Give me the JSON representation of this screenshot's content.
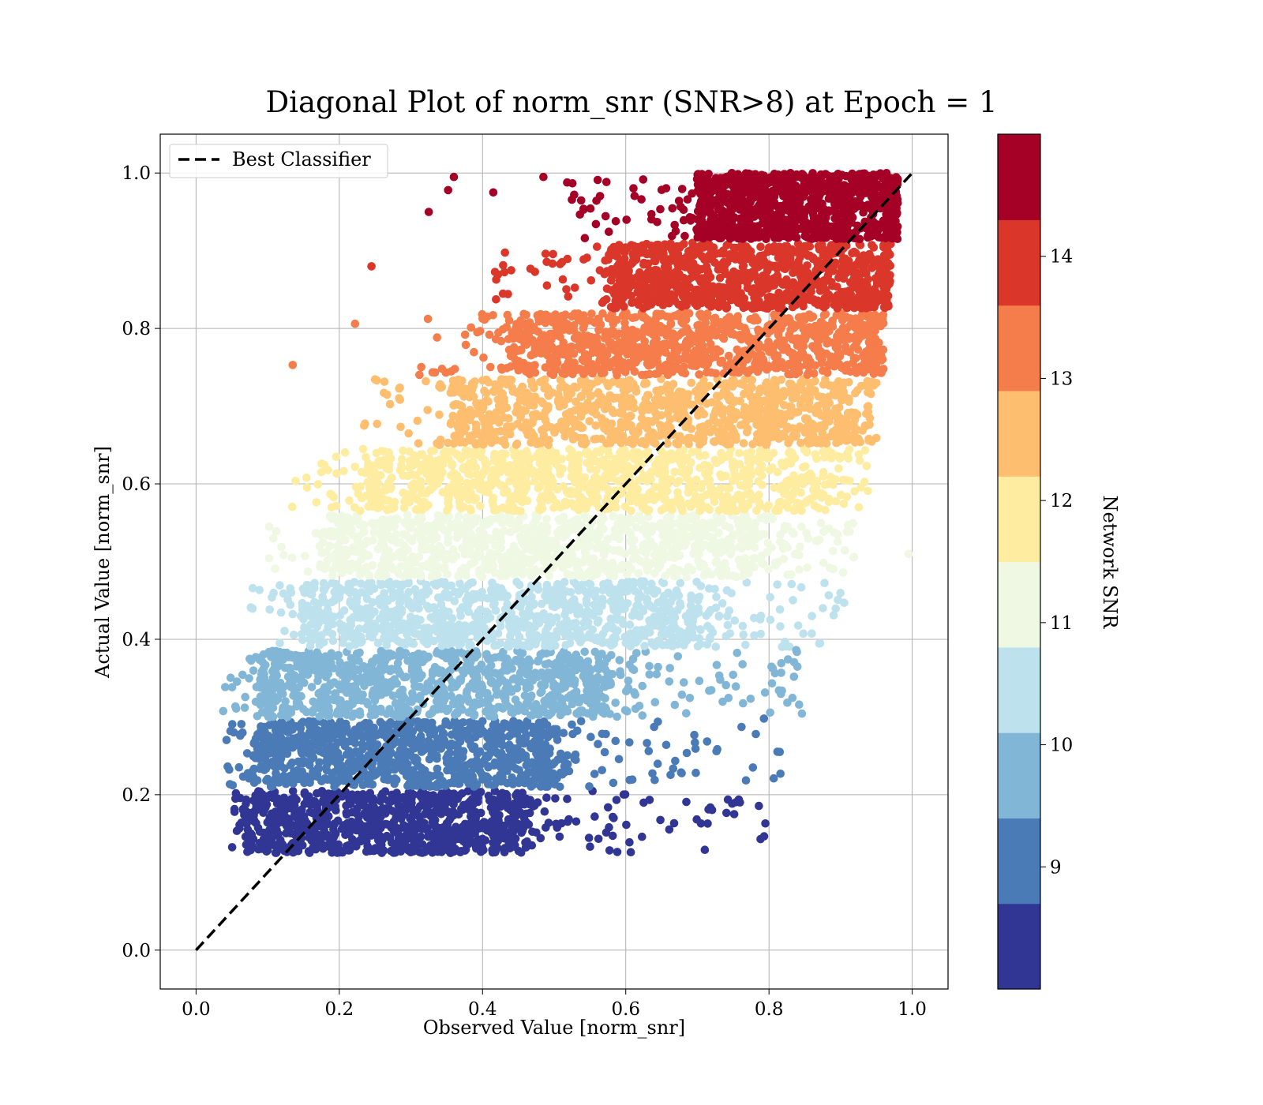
{
  "chart_data": {
    "type": "scatter",
    "title": "Diagonal Plot of norm_snr (SNR>8) at Epoch = 1",
    "xlabel": "Observed Value [norm_snr]",
    "ylabel": "Actual Value [norm_snr]",
    "xlim": [
      -0.05,
      1.05
    ],
    "ylim": [
      -0.05,
      1.05
    ],
    "xticks": [
      "0.0",
      "0.2",
      "0.4",
      "0.6",
      "0.8",
      "1.0"
    ],
    "yticks": [
      "0.0",
      "0.2",
      "0.4",
      "0.6",
      "0.8",
      "1.0"
    ],
    "grid": true,
    "legend": {
      "location": "upper-left",
      "entries": [
        "Best Classifier"
      ]
    },
    "reference_line": {
      "name": "Best Classifier",
      "x": [
        0.0,
        1.0
      ],
      "y": [
        0.0,
        1.0
      ],
      "style": "dashed",
      "color": "#000000"
    },
    "colorbar": {
      "label": "Network SNR",
      "range": [
        8.0,
        15.0
      ],
      "ticks": [
        "9",
        "10",
        "11",
        "12",
        "13",
        "14"
      ],
      "colormap": "RdYlBu_r",
      "colors": [
        "#313695",
        "#4a7bb7",
        "#82b6d6",
        "#bde2ee",
        "#eff8e2",
        "#feeda1",
        "#fdbe70",
        "#f57c4b",
        "#da372a",
        "#a50026"
      ]
    },
    "bands": [
      {
        "snr": 8.35,
        "y_range": [
          0.125,
          0.205
        ],
        "x_dense": [
          0.07,
          0.46
        ],
        "x_sparse": [
          0.46,
          0.8
        ]
      },
      {
        "snr": 9.05,
        "y_range": [
          0.21,
          0.295
        ],
        "x_dense": [
          0.08,
          0.5
        ],
        "x_sparse": [
          0.5,
          0.82
        ]
      },
      {
        "snr": 9.75,
        "y_range": [
          0.3,
          0.385
        ],
        "x_dense": [
          0.09,
          0.58
        ],
        "x_sparse": [
          0.58,
          0.85
        ]
      },
      {
        "snr": 10.45,
        "y_range": [
          0.39,
          0.475
        ],
        "x_dense": [
          0.15,
          0.7
        ],
        "x_sparse": [
          0.7,
          0.9
        ]
      },
      {
        "snr": 11.15,
        "y_range": [
          0.48,
          0.56
        ],
        "x_dense": [
          0.19,
          0.78
        ],
        "x_sparse": [
          0.78,
          0.92
        ]
      },
      {
        "snr": 11.85,
        "y_range": [
          0.565,
          0.645
        ],
        "x_dense": [
          0.24,
          0.85
        ],
        "x_sparse": [
          0.85,
          0.94
        ]
      },
      {
        "snr": 12.55,
        "y_range": [
          0.65,
          0.735
        ],
        "x_dense": [
          0.36,
          0.9
        ],
        "x_sparse": [
          0.9,
          0.95
        ]
      },
      {
        "snr": 13.25,
        "y_range": [
          0.74,
          0.82
        ],
        "x_dense": [
          0.44,
          0.94
        ],
        "x_sparse": [
          0.94,
          0.96
        ]
      },
      {
        "snr": 13.95,
        "y_range": [
          0.825,
          0.91
        ],
        "x_dense": [
          0.58,
          0.96
        ],
        "x_sparse": [
          0.96,
          0.97
        ]
      },
      {
        "snr": 14.65,
        "y_range": [
          0.915,
          1.0
        ],
        "x_dense": [
          0.7,
          0.97
        ],
        "x_sparse": [
          0.97,
          0.98
        ]
      }
    ],
    "outliers": [
      {
        "x": 0.055,
        "y": 0.195,
        "snr": 8.3
      },
      {
        "x": 0.607,
        "y": 0.126,
        "snr": 8.4
      },
      {
        "x": 0.705,
        "y": 0.163,
        "snr": 8.4
      },
      {
        "x": 0.795,
        "y": 0.163,
        "snr": 8.4
      },
      {
        "x": 0.815,
        "y": 0.255,
        "snr": 9.1
      },
      {
        "x": 0.793,
        "y": 0.298,
        "snr": 9.1
      },
      {
        "x": 0.842,
        "y": 0.316,
        "snr": 9.8
      },
      {
        "x": 0.838,
        "y": 0.386,
        "snr": 9.8
      },
      {
        "x": 0.068,
        "y": 0.312,
        "snr": 9.8
      },
      {
        "x": 0.135,
        "y": 0.753,
        "snr": 13.2
      },
      {
        "x": 0.222,
        "y": 0.806,
        "snr": 13.2
      },
      {
        "x": 0.245,
        "y": 0.88,
        "snr": 13.9
      },
      {
        "x": 0.36,
        "y": 0.995,
        "snr": 14.6
      },
      {
        "x": 0.485,
        "y": 0.995,
        "snr": 14.6
      },
      {
        "x": 0.325,
        "y": 0.95,
        "snr": 14.6
      },
      {
        "x": 0.415,
        "y": 0.975,
        "snr": 14.6
      },
      {
        "x": 0.352,
        "y": 0.978,
        "snr": 14.6
      },
      {
        "x": 0.528,
        "y": 0.972,
        "snr": 14.6
      },
      {
        "x": 0.995,
        "y": 0.51,
        "snr": 11.2
      },
      {
        "x": 0.905,
        "y": 0.447,
        "snr": 10.5
      },
      {
        "x": 0.885,
        "y": 0.492,
        "snr": 11.2
      },
      {
        "x": 0.102,
        "y": 0.545,
        "snr": 11.2
      },
      {
        "x": 0.175,
        "y": 0.615,
        "snr": 11.9
      },
      {
        "x": 0.108,
        "y": 0.53,
        "snr": 11.2
      }
    ]
  }
}
